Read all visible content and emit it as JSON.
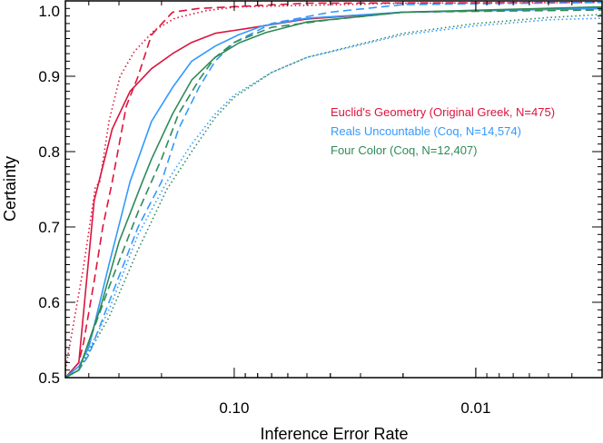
{
  "chart_data": {
    "type": "line",
    "xlabel": "Inference Error Rate",
    "ylabel": "Certainty",
    "x_scale": "log (reversed)",
    "xlim": [
      0.5,
      0.003
    ],
    "ylim": [
      0.5,
      1.0
    ],
    "x_ticks": [
      {
        "value": 0.1,
        "label": "0.10"
      },
      {
        "value": 0.01,
        "label": "0.01"
      }
    ],
    "y_ticks": [
      {
        "value": 0.5,
        "label": "0.5"
      },
      {
        "value": 0.6,
        "label": "0.6"
      },
      {
        "value": 0.7,
        "label": "0.7"
      },
      {
        "value": 0.8,
        "label": "0.8"
      },
      {
        "value": 0.9,
        "label": "0.9"
      },
      {
        "value": 1.0,
        "label": "1.0"
      }
    ],
    "grid": false,
    "legend_placement": "center-right",
    "legend": [
      {
        "label": "Euclid's Geometry (Original Greek, N=475)",
        "color": "#dc143c"
      },
      {
        "label": "Reals Uncountable (Coq, N=14,574)",
        "color": "#3399ff"
      },
      {
        "label": "Four Color (Coq, N=12,407)",
        "color": "#2e8b57"
      }
    ],
    "series": [
      {
        "group": 0,
        "style": "solid",
        "points": [
          [
            0.5,
            0.5
          ],
          [
            0.44,
            0.52
          ],
          [
            0.38,
            0.735
          ],
          [
            0.32,
            0.83
          ],
          [
            0.27,
            0.88
          ],
          [
            0.22,
            0.91
          ],
          [
            0.18,
            0.93
          ],
          [
            0.15,
            0.945
          ],
          [
            0.12,
            0.957
          ],
          [
            0.09,
            0.963
          ],
          [
            0.05,
            0.976
          ],
          [
            0.02,
            0.985
          ],
          [
            0.003,
            0.99
          ]
        ]
      },
      {
        "group": 0,
        "style": "dashed",
        "points": [
          [
            0.5,
            0.5
          ],
          [
            0.44,
            0.52
          ],
          [
            0.42,
            0.547
          ],
          [
            0.38,
            0.628
          ],
          [
            0.35,
            0.7
          ],
          [
            0.32,
            0.76
          ],
          [
            0.28,
            0.86
          ],
          [
            0.25,
            0.9
          ],
          [
            0.22,
            0.955
          ],
          [
            0.18,
            0.985
          ],
          [
            0.14,
            0.99
          ],
          [
            0.05,
            0.997
          ],
          [
            0.003,
            0.998
          ]
        ]
      },
      {
        "group": 0,
        "style": "dotted",
        "points": [
          [
            0.5,
            0.51
          ],
          [
            0.42,
            0.648
          ],
          [
            0.376,
            0.752
          ],
          [
            0.36,
            0.76
          ],
          [
            0.33,
            0.84
          ],
          [
            0.297,
            0.9
          ],
          [
            0.259,
            0.933
          ],
          [
            0.214,
            0.961
          ],
          [
            0.176,
            0.977
          ],
          [
            0.131,
            0.987
          ],
          [
            0.098,
            0.992
          ],
          [
            0.02,
            0.997
          ],
          [
            0.003,
            0.998
          ]
        ]
      },
      {
        "group": 1,
        "style": "solid",
        "points": [
          [
            0.5,
            0.5
          ],
          [
            0.44,
            0.515
          ],
          [
            0.4,
            0.54
          ],
          [
            0.33,
            0.65
          ],
          [
            0.27,
            0.76
          ],
          [
            0.22,
            0.84
          ],
          [
            0.18,
            0.885
          ],
          [
            0.15,
            0.92
          ],
          [
            0.12,
            0.94
          ],
          [
            0.096,
            0.955
          ],
          [
            0.076,
            0.967
          ],
          [
            0.05,
            0.977
          ],
          [
            0.02,
            0.985
          ],
          [
            0.003,
            0.99
          ]
        ]
      },
      {
        "group": 1,
        "style": "dashed",
        "points": [
          [
            0.5,
            0.5
          ],
          [
            0.44,
            0.51
          ],
          [
            0.4,
            0.53
          ],
          [
            0.33,
            0.6
          ],
          [
            0.25,
            0.7
          ],
          [
            0.2,
            0.76
          ],
          [
            0.17,
            0.83
          ],
          [
            0.14,
            0.885
          ],
          [
            0.12,
            0.92
          ],
          [
            0.1,
            0.945
          ],
          [
            0.07,
            0.97
          ],
          [
            0.04,
            0.985
          ],
          [
            0.02,
            0.995
          ],
          [
            0.003,
            0.998
          ]
        ]
      },
      {
        "group": 1,
        "style": "dotted",
        "points": [
          [
            0.5,
            0.5
          ],
          [
            0.44,
            0.51
          ],
          [
            0.33,
            0.59
          ],
          [
            0.25,
            0.69
          ],
          [
            0.19,
            0.76
          ],
          [
            0.15,
            0.81
          ],
          [
            0.12,
            0.85
          ],
          [
            0.1,
            0.875
          ],
          [
            0.07,
            0.905
          ],
          [
            0.05,
            0.925
          ],
          [
            0.02,
            0.955
          ],
          [
            0.01,
            0.967
          ],
          [
            0.005,
            0.975
          ],
          [
            0.003,
            0.977
          ]
        ]
      },
      {
        "group": 2,
        "style": "solid",
        "points": [
          [
            0.5,
            0.5
          ],
          [
            0.44,
            0.51
          ],
          [
            0.36,
            0.59
          ],
          [
            0.3,
            0.68
          ],
          [
            0.24,
            0.76
          ],
          [
            0.22,
            0.79
          ],
          [
            0.18,
            0.85
          ],
          [
            0.15,
            0.895
          ],
          [
            0.12,
            0.925
          ],
          [
            0.096,
            0.944
          ],
          [
            0.074,
            0.958
          ],
          [
            0.05,
            0.972
          ],
          [
            0.02,
            0.985
          ],
          [
            0.003,
            0.992
          ]
        ]
      },
      {
        "group": 2,
        "style": "dashed",
        "points": [
          [
            0.5,
            0.5
          ],
          [
            0.44,
            0.51
          ],
          [
            0.33,
            0.62
          ],
          [
            0.25,
            0.72
          ],
          [
            0.2,
            0.79
          ],
          [
            0.17,
            0.85
          ],
          [
            0.14,
            0.895
          ],
          [
            0.12,
            0.925
          ],
          [
            0.1,
            0.945
          ],
          [
            0.07,
            0.965
          ],
          [
            0.04,
            0.975
          ],
          [
            0.02,
            0.985
          ],
          [
            0.003,
            0.988
          ]
        ]
      },
      {
        "group": 2,
        "style": "dotted",
        "points": [
          [
            0.5,
            0.5
          ],
          [
            0.44,
            0.51
          ],
          [
            0.33,
            0.58
          ],
          [
            0.25,
            0.67
          ],
          [
            0.19,
            0.75
          ],
          [
            0.15,
            0.8
          ],
          [
            0.12,
            0.845
          ],
          [
            0.1,
            0.872
          ],
          [
            0.07,
            0.905
          ],
          [
            0.05,
            0.925
          ],
          [
            0.02,
            0.957
          ],
          [
            0.01,
            0.97
          ],
          [
            0.005,
            0.978
          ],
          [
            0.003,
            0.982
          ]
        ]
      }
    ]
  }
}
